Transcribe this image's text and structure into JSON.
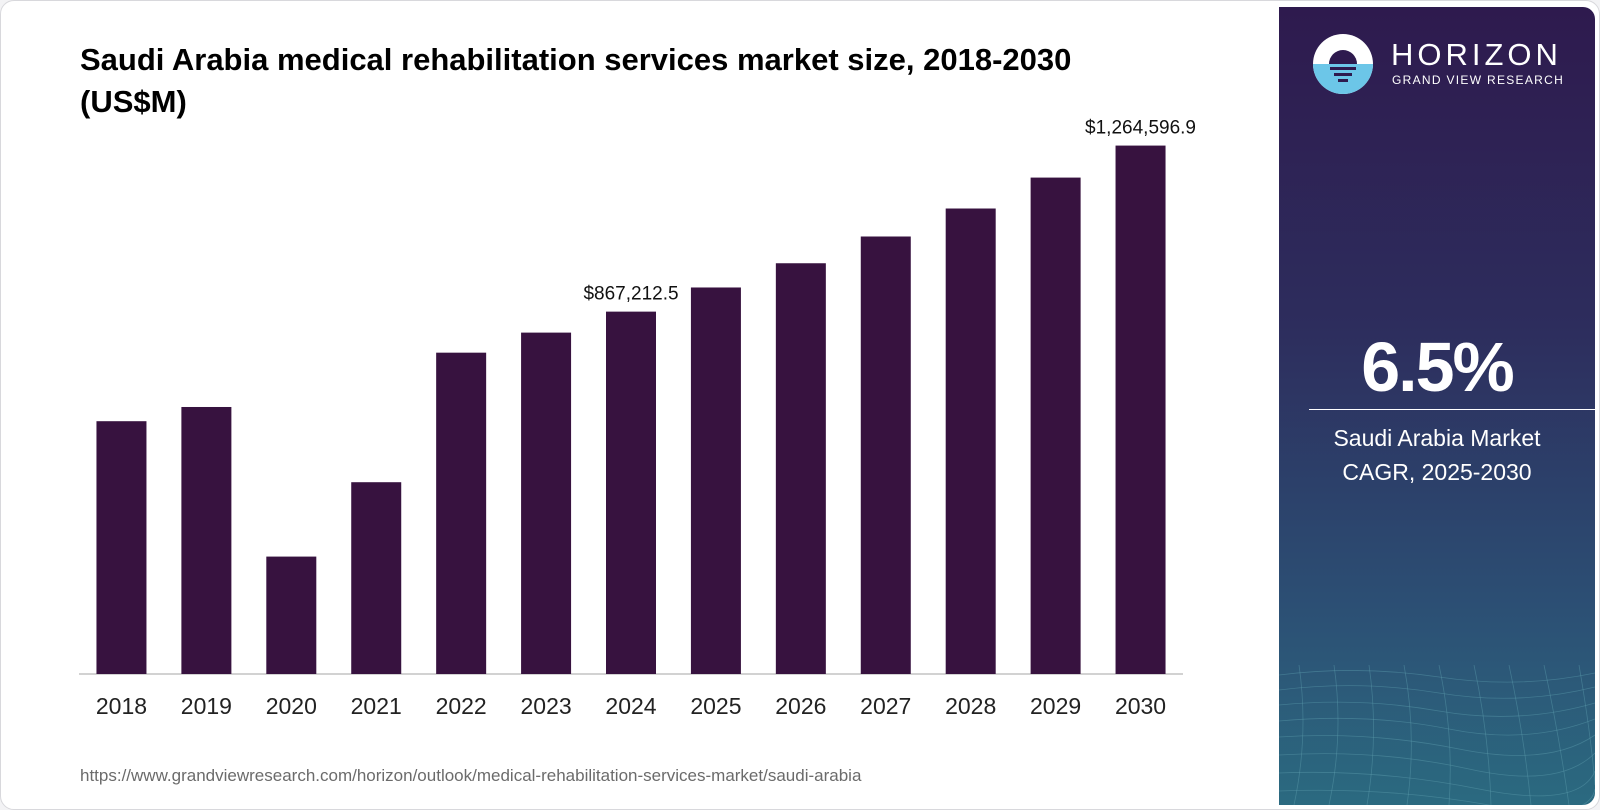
{
  "chart_data": {
    "type": "bar",
    "title": "Saudi Arabia medical rehabilitation services market size, 2018-2030 (US$M)",
    "xlabel": "",
    "ylabel": "",
    "categories": [
      "2018",
      "2019",
      "2020",
      "2021",
      "2022",
      "2023",
      "2024",
      "2025",
      "2026",
      "2027",
      "2028",
      "2029",
      "2030"
    ],
    "values": [
      605000,
      639000,
      281000,
      459000,
      769000,
      817000,
      867212.5,
      925000,
      983000,
      1047000,
      1114000,
      1188000,
      1264596.9
    ],
    "data_labels": [
      {
        "index": 6,
        "text": "$867,212.5"
      },
      {
        "index": 12,
        "text": "$1,264,596.9"
      }
    ],
    "ylim": [
      0,
      1400000
    ],
    "grid": false,
    "bar_color": "#37123f"
  },
  "source_url": "https://www.grandviewresearch.com/horizon/outlook/medical-rehabilitation-services-market/saudi-arabia",
  "sidebar": {
    "brand_name": "HORIZON",
    "brand_sub": "GRAND VIEW RESEARCH",
    "cagr_value": "6.5%",
    "cagr_label_line1": "Saudi Arabia Market",
    "cagr_label_line2": "CAGR, 2025-2030"
  }
}
